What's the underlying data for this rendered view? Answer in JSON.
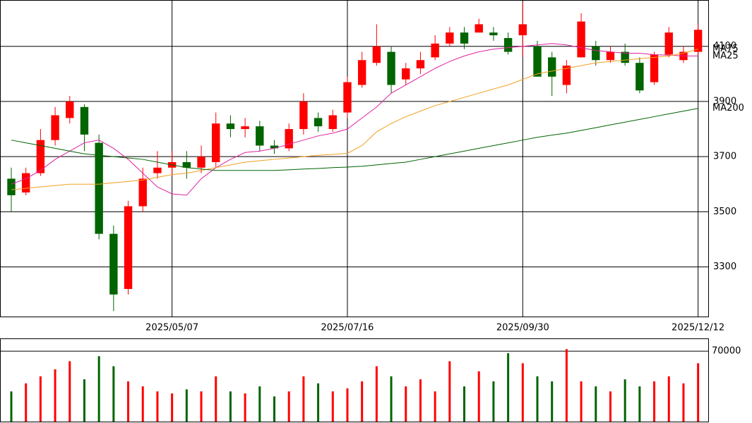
{
  "chart_data": {
    "type": "candlestick",
    "categories": [
      null,
      null,
      null,
      null,
      null,
      null,
      null,
      null,
      null,
      null,
      null,
      "2025/05/07",
      null,
      null,
      null,
      null,
      null,
      null,
      null,
      null,
      null,
      null,
      null,
      "2025/07/16",
      null,
      null,
      null,
      null,
      null,
      null,
      null,
      null,
      null,
      null,
      null,
      "2025/09/30",
      null,
      null,
      null,
      null,
      null,
      null,
      null,
      null,
      null,
      null,
      null,
      "2025/12/12"
    ],
    "open": [
      3620,
      3570,
      3640,
      3760,
      3840,
      3880,
      3750,
      3420,
      3220,
      3520,
      3640,
      3660,
      3680,
      3660,
      3680,
      3820,
      3800,
      3810,
      3740,
      3730,
      3800,
      3840,
      3800,
      3860,
      3960,
      4040,
      4080,
      3980,
      4020,
      4060,
      4110,
      4150,
      4150,
      4150,
      4130,
      4140,
      4100,
      4060,
      3960,
      4060,
      4100,
      4050,
      4080,
      4040,
      3970,
      4070,
      4050,
      4080
    ],
    "high": [
      3660,
      3660,
      3800,
      3880,
      3920,
      3890,
      3780,
      3450,
      3540,
      3660,
      3720,
      3720,
      3720,
      3740,
      3860,
      3850,
      3840,
      3830,
      3760,
      3820,
      3930,
      3860,
      3870,
      3990,
      4080,
      4180,
      4100,
      4040,
      4080,
      4140,
      4170,
      4170,
      4200,
      4170,
      4150,
      4260,
      4120,
      4080,
      4050,
      4220,
      4120,
      4100,
      4110,
      4060,
      4080,
      4170,
      4100,
      4180
    ],
    "low": [
      3500,
      3560,
      3630,
      3740,
      3820,
      3720,
      3400,
      3140,
      3200,
      3500,
      3620,
      3630,
      3620,
      3640,
      3660,
      3770,
      3770,
      3720,
      3710,
      3720,
      3780,
      3790,
      3790,
      3840,
      3950,
      4030,
      3930,
      3960,
      4000,
      4050,
      4100,
      4090,
      4150,
      4120,
      4070,
      4060,
      3990,
      3920,
      3930,
      4060,
      4030,
      4040,
      4030,
      3930,
      3960,
      4060,
      4040,
      4070
    ],
    "close": [
      3560,
      3640,
      3760,
      3850,
      3900,
      3780,
      3420,
      3200,
      3520,
      3620,
      3660,
      3680,
      3660,
      3700,
      3820,
      3800,
      3810,
      3740,
      3730,
      3800,
      3900,
      3810,
      3850,
      3970,
      4050,
      4100,
      3960,
      4020,
      4050,
      4110,
      4150,
      4110,
      4180,
      4140,
      4080,
      4180,
      3990,
      3990,
      4030,
      4190,
      4050,
      4080,
      4040,
      3940,
      4070,
      4150,
      4080,
      4160
    ],
    "volume": [
      30000,
      38000,
      45000,
      52000,
      60000,
      42000,
      65000,
      55000,
      40000,
      35000,
      30000,
      28000,
      32000,
      30000,
      45000,
      30000,
      28000,
      35000,
      25000,
      30000,
      45000,
      38000,
      30000,
      33000,
      40000,
      55000,
      45000,
      35000,
      42000,
      30000,
      60000,
      35000,
      50000,
      40000,
      68000,
      58000,
      45000,
      40000,
      72000,
      40000,
      35000,
      30000,
      42000,
      35000,
      40000,
      45000,
      38000,
      58000
    ],
    "up_color": "#ff0000",
    "down_color": "#006400",
    "series": [
      {
        "name": "MA25",
        "color": "#e020a0",
        "values": [
          3600,
          3620,
          3650,
          3690,
          3720,
          3750,
          3760,
          3730,
          3690,
          3640,
          3590,
          3565,
          3560,
          3620,
          3660,
          3690,
          3715,
          3720,
          3730,
          3745,
          3760,
          3775,
          3785,
          3800,
          3840,
          3880,
          3930,
          3960,
          3990,
          4020,
          4045,
          4065,
          4080,
          4090,
          4095,
          4100,
          4105,
          4110,
          4105,
          4095,
          4085,
          4080,
          4075,
          4075,
          4070,
          4068,
          4065,
          4065
        ]
      },
      {
        "name": "MA75",
        "color": "#f0a020",
        "values": [
          3580,
          3585,
          3590,
          3595,
          3600,
          3600,
          3600,
          3605,
          3610,
          3615,
          3625,
          3635,
          3640,
          3650,
          3660,
          3670,
          3680,
          3685,
          3690,
          3695,
          3700,
          3705,
          3708,
          3712,
          3740,
          3790,
          3820,
          3845,
          3865,
          3885,
          3900,
          3915,
          3930,
          3945,
          3960,
          3980,
          4000,
          4010,
          4020,
          4030,
          4040,
          4045,
          4050,
          4055,
          4060,
          4065,
          4075,
          4090
        ]
      },
      {
        "name": "MA200",
        "color": "#006400",
        "values": [
          3760,
          3750,
          3740,
          3730,
          3720,
          3710,
          3705,
          3700,
          3695,
          3690,
          3680,
          3670,
          3660,
          3655,
          3650,
          3650,
          3650,
          3650,
          3650,
          3652,
          3655,
          3657,
          3660,
          3662,
          3665,
          3670,
          3675,
          3680,
          3690,
          3700,
          3710,
          3720,
          3730,
          3740,
          3750,
          3760,
          3770,
          3778,
          3785,
          3795,
          3805,
          3815,
          3825,
          3835,
          3845,
          3855,
          3865,
          3875
        ]
      }
    ],
    "ylim": [
      3120,
      4268
    ],
    "yticks": [
      3300,
      3500,
      3700,
      3900,
      4100
    ],
    "volume_ylim": [
      0,
      82000
    ],
    "volume_ticks": [
      70000
    ],
    "grid": true
  }
}
